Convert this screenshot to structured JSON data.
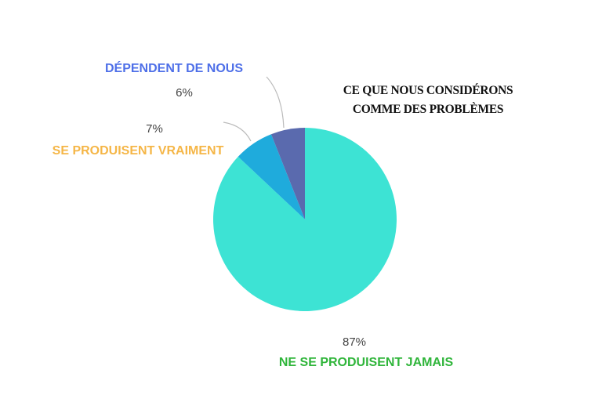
{
  "chart_data": {
    "type": "pie",
    "title": "CE QUE NOUS CONSIDÉRONS COMME DES PROBLÈMES",
    "categories": [
      "NE SE PRODUISENT JAMAIS",
      "SE PRODUISENT VRAIMENT",
      "DÉPENDENT DE NOUS"
    ],
    "values": [
      87,
      7,
      6
    ],
    "value_labels": [
      "87%",
      "7%",
      "6%"
    ],
    "colors": [
      "#3de3d4",
      "#1fabdc",
      "#5a6aae"
    ],
    "label_colors": [
      "#2fb53a",
      "#f5b647",
      "#4e6fe8"
    ]
  }
}
